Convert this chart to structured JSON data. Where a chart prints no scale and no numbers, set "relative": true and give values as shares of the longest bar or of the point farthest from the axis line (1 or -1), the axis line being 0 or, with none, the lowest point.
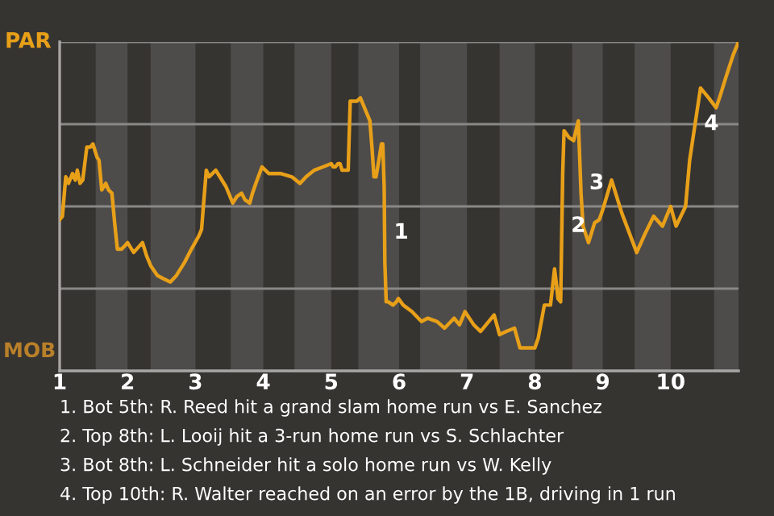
{
  "chart_data": {
    "type": "line",
    "relative": true,
    "x": [
      1.0,
      1.04,
      1.09,
      1.13,
      1.19,
      1.23,
      1.26,
      1.3,
      1.34,
      1.4,
      1.45,
      1.49,
      1.55,
      1.58,
      1.62,
      1.68,
      1.72,
      1.77,
      1.81,
      1.85,
      1.91,
      1.96,
      2.0,
      2.09,
      2.22,
      2.28,
      2.34,
      2.44,
      2.53,
      2.63,
      2.72,
      2.84,
      2.94,
      3.05,
      3.09,
      3.16,
      3.2,
      3.3,
      3.36,
      3.45,
      3.55,
      3.61,
      3.68,
      3.73,
      3.8,
      3.84,
      3.89,
      3.98,
      4.08,
      4.25,
      4.42,
      4.54,
      4.63,
      4.75,
      4.88,
      5.0,
      5.03,
      5.06,
      5.1,
      5.13,
      5.16,
      5.21,
      5.25,
      5.28,
      5.34,
      5.38,
      5.43,
      5.47,
      5.51,
      5.57,
      5.6,
      5.63,
      5.66,
      5.71,
      5.74,
      5.76,
      5.78,
      5.79,
      5.81,
      5.84,
      5.91,
      5.96,
      5.99,
      6.06,
      6.19,
      6.33,
      6.42,
      6.56,
      6.67,
      6.81,
      6.89,
      6.97,
      7.1,
      7.2,
      7.4,
      7.48,
      7.58,
      7.7,
      7.78,
      7.9,
      8.0,
      8.05,
      8.14,
      8.23,
      8.29,
      8.32,
      8.34,
      8.38,
      8.39,
      8.41,
      8.43,
      8.5,
      8.57,
      8.64,
      8.68,
      8.71,
      8.79,
      8.88,
      8.95,
      9.0,
      9.13,
      9.28,
      9.5,
      9.63,
      9.75,
      9.88,
      10.0,
      10.08,
      10.22,
      10.28,
      10.36,
      10.44,
      10.56,
      10.67,
      10.72,
      10.81,
      10.92,
      11.0
    ],
    "series": [
      {
        "color": "#e8a019",
        "values": [
          0.46,
          0.47,
          0.59,
          0.57,
          0.6,
          0.58,
          0.61,
          0.57,
          0.58,
          0.68,
          0.68,
          0.69,
          0.65,
          0.64,
          0.55,
          0.57,
          0.55,
          0.54,
          0.45,
          0.37,
          0.37,
          0.38,
          0.39,
          0.36,
          0.39,
          0.35,
          0.32,
          0.29,
          0.28,
          0.27,
          0.29,
          0.33,
          0.37,
          0.41,
          0.43,
          0.61,
          0.59,
          0.61,
          0.59,
          0.56,
          0.51,
          0.53,
          0.54,
          0.52,
          0.51,
          0.54,
          0.57,
          0.62,
          0.6,
          0.6,
          0.59,
          0.57,
          0.59,
          0.61,
          0.62,
          0.63,
          0.62,
          0.62,
          0.63,
          0.63,
          0.61,
          0.61,
          0.61,
          0.82,
          0.82,
          0.82,
          0.83,
          0.81,
          0.79,
          0.76,
          0.68,
          0.59,
          0.59,
          0.65,
          0.69,
          0.69,
          0.56,
          0.33,
          0.21,
          0.21,
          0.2,
          0.21,
          0.22,
          0.2,
          0.18,
          0.15,
          0.16,
          0.15,
          0.13,
          0.16,
          0.14,
          0.18,
          0.14,
          0.12,
          0.17,
          0.11,
          0.12,
          0.13,
          0.07,
          0.07,
          0.07,
          0.1,
          0.2,
          0.2,
          0.31,
          0.26,
          0.22,
          0.21,
          0.34,
          0.6,
          0.73,
          0.71,
          0.7,
          0.76,
          0.54,
          0.44,
          0.39,
          0.45,
          0.46,
          0.49,
          0.58,
          0.48,
          0.36,
          0.42,
          0.47,
          0.44,
          0.5,
          0.44,
          0.5,
          0.64,
          0.75,
          0.86,
          0.83,
          0.8,
          0.83,
          0.89,
          0.96,
          1
        ]
      }
    ],
    "xlim": [
      1,
      11
    ],
    "xticks": [
      1,
      2,
      3,
      4,
      5,
      6,
      7,
      8,
      9,
      10
    ],
    "bands": [
      {
        "axis": "x",
        "from": 1.53,
        "to": 2,
        "color": "#4e4c4a"
      },
      {
        "axis": "x",
        "from": 2.34,
        "to": 3,
        "color": "#4e4c4a"
      },
      {
        "axis": "x",
        "from": 3.52,
        "to": 4,
        "color": "#4e4c4a"
      },
      {
        "axis": "x",
        "from": 4.46,
        "to": 5,
        "color": "#4e4c4a"
      },
      {
        "axis": "x",
        "from": 5.4,
        "to": 6,
        "color": "#4e4c4a"
      },
      {
        "axis": "x",
        "from": 6.31,
        "to": 7,
        "color": "#4e4c4a"
      },
      {
        "axis": "x",
        "from": 7.48,
        "to": 8,
        "color": "#4e4c4a"
      },
      {
        "axis": "x",
        "from": 8.55,
        "to": 9,
        "color": "#4e4c4a"
      },
      {
        "axis": "x",
        "from": 9.47,
        "to": 10,
        "color": "#4e4c4a"
      },
      {
        "axis": "x",
        "from": 10.64,
        "to": 11,
        "color": "#4e4c4a"
      }
    ],
    "ref_lines": [
      {
        "axis": "y",
        "value": 0.25,
        "color": "#8a8886"
      },
      {
        "axis": "y",
        "value": 0.5,
        "color": "#8a8886"
      },
      {
        "axis": "y",
        "value": 0.75,
        "color": "#8a8886"
      },
      {
        "axis": "y",
        "value": 1,
        "color": "#8a8886"
      }
    ],
    "annotations": [
      {
        "text": "1",
        "x": 5.79,
        "y": 0.42
      },
      {
        "text": "2",
        "x": 8.4,
        "y": 0.44
      },
      {
        "text": "3",
        "x": 8.67,
        "y": 0.57
      },
      {
        "text": "4",
        "x": 10.36,
        "y": 0.75
      },
      "PAR",
      "MOB",
      "1. Bot 5th: R. Reed hit a grand slam home run vs E. Sanchez",
      "2. Top 8th: L. Looij hit a 3-run home run vs S. Schlachter",
      "3. Bot 8th: L. Schneider hit a solo home run vs W. Kelly",
      "4. Top 10th: R. Walter reached on an error by the 1B, driving in 1 run"
    ]
  }
}
